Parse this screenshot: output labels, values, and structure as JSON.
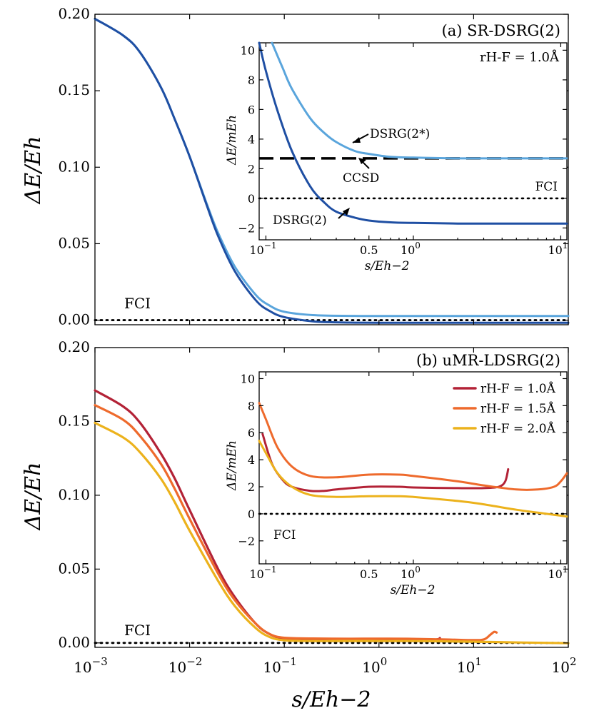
{
  "chart_data": [
    {
      "id": "main_a",
      "type": "line",
      "xscale": "log",
      "xlim": [
        0.001,
        100
      ],
      "ylim": [
        -0.003,
        0.2
      ],
      "yticks": [
        "0.00",
        "0.05",
        "0.10",
        "0.15",
        "0.20"
      ],
      "ytick_values": [
        0,
        0.05,
        0.1,
        0.15,
        0.2
      ],
      "ylabel": "ΔE/Eh",
      "title": "(a) SR-DSRG(2)",
      "reference": {
        "label": "FCI",
        "value": 0
      },
      "series": [
        {
          "color": "#5aa5dc",
          "x": [
            0.001,
            0.002,
            0.003,
            0.005,
            0.007,
            0.01,
            0.015,
            0.02,
            0.03,
            0.05,
            0.07,
            0.1,
            0.2,
            0.5,
            1,
            10,
            100
          ],
          "y": [
            0.197,
            0.186,
            0.175,
            0.152,
            0.131,
            0.107,
            0.077,
            0.057,
            0.035,
            0.0165,
            0.0095,
            0.0055,
            0.0033,
            0.0028,
            0.0027,
            0.0027,
            0.0027
          ]
        },
        {
          "color": "#1f4fa3",
          "x": [
            0.001,
            0.002,
            0.003,
            0.005,
            0.007,
            0.01,
            0.015,
            0.02,
            0.03,
            0.05,
            0.07,
            0.1,
            0.2,
            0.3,
            0.5,
            1,
            10,
            100
          ],
          "y": [
            0.197,
            0.186,
            0.175,
            0.152,
            0.131,
            0.107,
            0.076,
            0.055,
            0.032,
            0.013,
            0.006,
            0.002,
            -0.0008,
            -0.0013,
            -0.0016,
            -0.0017,
            -0.0017,
            -0.0017
          ]
        }
      ]
    },
    {
      "id": "inset_a",
      "type": "line",
      "xscale": "log",
      "xlim": [
        0.09,
        11
      ],
      "ylim": [
        -2.8,
        10.5
      ],
      "yticks": [
        "−2",
        "0",
        "2",
        "4",
        "6",
        "8",
        "10"
      ],
      "ytick_values": [
        -2,
        0,
        2,
        4,
        6,
        8,
        10
      ],
      "xlabel": "s/Eh−2",
      "ylabel": "ΔE/mEh",
      "annotation": "rH-F = 1.0Å",
      "reference": {
        "label": "FCI",
        "value": 0
      },
      "ccsd": {
        "label": "CCSD",
        "value": 2.7
      },
      "series": [
        {
          "name": "DSRG(2*)",
          "color": "#5aa5dc",
          "x": [
            0.11,
            0.13,
            0.15,
            0.2,
            0.25,
            0.3,
            0.4,
            0.5,
            0.7,
            1,
            2,
            5,
            11
          ],
          "y": [
            10.5,
            8.8,
            7.4,
            5.4,
            4.4,
            3.8,
            3.2,
            3.0,
            2.8,
            2.75,
            2.7,
            2.7,
            2.7
          ]
        },
        {
          "name": "DSRG(2)",
          "color": "#1f4fa3",
          "x": [
            0.09,
            0.1,
            0.12,
            0.15,
            0.2,
            0.25,
            0.3,
            0.4,
            0.5,
            0.7,
            1,
            2,
            5,
            11
          ],
          "y": [
            10.5,
            8.6,
            5.9,
            3.2,
            0.8,
            -0.3,
            -0.9,
            -1.3,
            -1.5,
            -1.62,
            -1.66,
            -1.7,
            -1.7,
            -1.7
          ]
        }
      ]
    },
    {
      "id": "main_b",
      "type": "line",
      "xscale": "log",
      "xlim": [
        0.001,
        100
      ],
      "ylim": [
        -0.003,
        0.2
      ],
      "yticks": [
        "0.00",
        "0.05",
        "0.10",
        "0.15",
        "0.20"
      ],
      "ytick_values": [
        0,
        0.05,
        0.1,
        0.15,
        0.2
      ],
      "xticks": [
        "10−3",
        "10−2",
        "10−1",
        "100",
        "101",
        "102"
      ],
      "xtick_values": [
        0.001,
        0.01,
        0.1,
        1,
        10,
        100
      ],
      "xlabel": "s/Eh−2",
      "ylabel": "ΔE/Eh",
      "title": "(b) uMR-LDSRG(2)",
      "reference": {
        "label": "FCI",
        "value": 0
      },
      "series": [
        {
          "color": "#b32236",
          "x": [
            0.001,
            0.002,
            0.003,
            0.005,
            0.007,
            0.01,
            0.02,
            0.03,
            0.05,
            0.07,
            0.1,
            0.2,
            0.5,
            1,
            2,
            3.5,
            4.2,
            4.4
          ],
          "y": [
            0.171,
            0.16,
            0.149,
            0.128,
            0.111,
            0.09,
            0.05,
            0.031,
            0.013,
            0.006,
            0.003,
            0.002,
            0.002,
            0.002,
            0.002,
            0.002,
            0.0025,
            0.0033
          ]
        },
        {
          "color": "#ee6a2c",
          "x": [
            0.001,
            0.002,
            0.003,
            0.005,
            0.007,
            0.01,
            0.02,
            0.03,
            0.05,
            0.07,
            0.1,
            0.2,
            0.5,
            1,
            2,
            5,
            10,
            13,
            15,
            16.5,
            17.5
          ],
          "y": [
            0.161,
            0.151,
            0.14,
            0.121,
            0.104,
            0.084,
            0.047,
            0.029,
            0.013,
            0.006,
            0.0035,
            0.003,
            0.0028,
            0.0029,
            0.0028,
            0.0023,
            0.0019,
            0.0025,
            0.0055,
            0.0075,
            0.007
          ]
        },
        {
          "color": "#ecb21c",
          "x": [
            0.001,
            0.002,
            0.003,
            0.005,
            0.007,
            0.01,
            0.02,
            0.03,
            0.05,
            0.07,
            0.1,
            0.2,
            0.5,
            1,
            3,
            10,
            30,
            100
          ],
          "y": [
            0.149,
            0.139,
            0.129,
            0.111,
            0.095,
            0.076,
            0.042,
            0.025,
            0.01,
            0.004,
            0.0018,
            0.0013,
            0.0013,
            0.0013,
            0.0012,
            0.0008,
            0.0003,
            -0.0002
          ]
        }
      ]
    },
    {
      "id": "inset_b",
      "type": "line",
      "xscale": "log",
      "xlim": [
        0.09,
        11
      ],
      "ylim": [
        -3.7,
        10.5
      ],
      "yticks": [
        "−2",
        "0",
        "2",
        "4",
        "6",
        "8",
        "10"
      ],
      "ytick_values": [
        -2,
        0,
        2,
        4,
        6,
        8,
        10
      ],
      "xlabel": "s/Eh−2",
      "ylabel": "ΔE/mEh",
      "reference": {
        "label": "FCI",
        "value": 0
      },
      "legend_position": "top-right",
      "series": [
        {
          "name": "rH-F = 1.0Å",
          "color": "#b32236",
          "x": [
            0.095,
            0.11,
            0.13,
            0.15,
            0.2,
            0.25,
            0.3,
            0.5,
            0.8,
            1,
            2,
            3,
            3.8,
            4.2,
            4.4
          ],
          "y": [
            5.9,
            3.7,
            2.5,
            2.0,
            1.7,
            1.7,
            1.8,
            2.0,
            2.0,
            1.95,
            1.9,
            1.9,
            2.0,
            2.4,
            3.3
          ]
        },
        {
          "name": "rH-F = 1.5Å",
          "color": "#ee6a2c",
          "x": [
            0.09,
            0.1,
            0.12,
            0.15,
            0.2,
            0.3,
            0.5,
            0.8,
            1,
            2,
            3,
            5,
            7,
            9,
            10,
            11
          ],
          "y": [
            8.2,
            7.0,
            4.9,
            3.5,
            2.8,
            2.7,
            2.9,
            2.9,
            2.8,
            2.4,
            2.1,
            1.8,
            1.8,
            2.0,
            2.4,
            3.0
          ]
        },
        {
          "name": "rH-F = 2.0Å",
          "color": "#ecb21c",
          "x": [
            0.09,
            0.1,
            0.12,
            0.15,
            0.2,
            0.3,
            0.5,
            0.8,
            1,
            2,
            3,
            5,
            8,
            11
          ],
          "y": [
            5.4,
            4.5,
            3.0,
            2.0,
            1.4,
            1.25,
            1.3,
            1.3,
            1.25,
            0.95,
            0.7,
            0.3,
            0.0,
            -0.2
          ]
        }
      ]
    }
  ],
  "inset_xticks": [
    "10−1",
    "0.5",
    "100",
    "101"
  ],
  "inset_xtick_values": [
    0.1,
    0.5,
    1,
    10
  ]
}
